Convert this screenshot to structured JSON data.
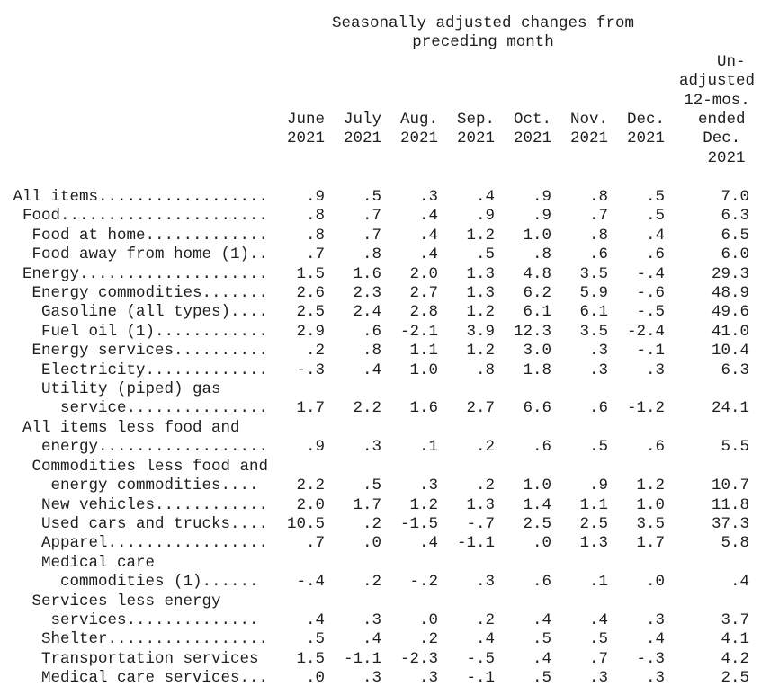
{
  "title": {
    "line1": "Seasonally adjusted changes from",
    "line2": "preceding month"
  },
  "columns": {
    "months": [
      {
        "name": "June",
        "year": "2021"
      },
      {
        "name": "July",
        "year": "2021"
      },
      {
        "name": "Aug.",
        "year": "2021"
      },
      {
        "name": "Sep.",
        "year": "2021"
      },
      {
        "name": "Oct.",
        "year": "2021"
      },
      {
        "name": "Nov.",
        "year": "2021"
      },
      {
        "name": "Dec.",
        "year": "2021"
      }
    ],
    "unadjusted_header": "   Un-\nadjusted\n12-mos.\n ended\n Dec.\n  2021"
  },
  "rows": [
    {
      "label_lines": [
        " All items.................."
      ],
      "values": [
        ".9",
        ".5",
        ".3",
        ".4",
        ".9",
        ".8",
        ".5",
        "7.0"
      ]
    },
    {
      "label_lines": [
        "  Food......................"
      ],
      "values": [
        ".8",
        ".7",
        ".4",
        ".9",
        ".9",
        ".7",
        ".5",
        "6.3"
      ]
    },
    {
      "label_lines": [
        "   Food at home............."
      ],
      "values": [
        ".8",
        ".7",
        ".4",
        "1.2",
        "1.0",
        ".8",
        ".4",
        "6.5"
      ]
    },
    {
      "label_lines": [
        "   Food away from home (1).."
      ],
      "values": [
        ".7",
        ".8",
        ".4",
        ".5",
        ".8",
        ".6",
        ".6",
        "6.0"
      ]
    },
    {
      "label_lines": [
        "  Energy...................."
      ],
      "values": [
        "1.5",
        "1.6",
        "2.0",
        "1.3",
        "4.8",
        "3.5",
        "-.4",
        "29.3"
      ]
    },
    {
      "label_lines": [
        "   Energy commodities......."
      ],
      "values": [
        "2.6",
        "2.3",
        "2.7",
        "1.3",
        "6.2",
        "5.9",
        "-.6",
        "48.9"
      ]
    },
    {
      "label_lines": [
        "    Gasoline (all types)...."
      ],
      "values": [
        "2.5",
        "2.4",
        "2.8",
        "1.2",
        "6.1",
        "6.1",
        "-.5",
        "49.6"
      ]
    },
    {
      "label_lines": [
        "    Fuel oil (1)............"
      ],
      "values": [
        "2.9",
        ".6",
        "-2.1",
        "3.9",
        "12.3",
        "3.5",
        "-2.4",
        "41.0"
      ]
    },
    {
      "label_lines": [
        "   Energy services.........."
      ],
      "values": [
        ".2",
        ".8",
        "1.1",
        "1.2",
        "3.0",
        ".3",
        "-.1",
        "10.4"
      ]
    },
    {
      "label_lines": [
        "    Electricity............."
      ],
      "values": [
        "-.3",
        ".4",
        "1.0",
        ".8",
        "1.8",
        ".3",
        ".3",
        "6.3"
      ]
    },
    {
      "label_lines": [
        "    Utility (piped) gas",
        "      service..............."
      ],
      "values": [
        "1.7",
        "2.2",
        "1.6",
        "2.7",
        "6.6",
        ".6",
        "-1.2",
        "24.1"
      ]
    },
    {
      "label_lines": [
        "  All items less food and",
        "    energy.................."
      ],
      "values": [
        ".9",
        ".3",
        ".1",
        ".2",
        ".6",
        ".5",
        ".6",
        "5.5"
      ]
    },
    {
      "label_lines": [
        "   Commodities less food and",
        "     energy commodities...."
      ],
      "values": [
        "2.2",
        ".5",
        ".3",
        ".2",
        "1.0",
        ".9",
        "1.2",
        "10.7"
      ]
    },
    {
      "label_lines": [
        "    New vehicles............"
      ],
      "values": [
        "2.0",
        "1.7",
        "1.2",
        "1.3",
        "1.4",
        "1.1",
        "1.0",
        "11.8"
      ]
    },
    {
      "label_lines": [
        "    Used cars and trucks...."
      ],
      "values": [
        "10.5",
        ".2",
        "-1.5",
        "-.7",
        "2.5",
        "2.5",
        "3.5",
        "37.3"
      ]
    },
    {
      "label_lines": [
        "    Apparel................."
      ],
      "values": [
        ".7",
        ".0",
        ".4",
        "-1.1",
        ".0",
        "1.3",
        "1.7",
        "5.8"
      ]
    },
    {
      "label_lines": [
        "    Medical care",
        "      commodities (1)......"
      ],
      "values": [
        "-.4",
        ".2",
        "-.2",
        ".3",
        ".6",
        ".1",
        ".0",
        ".4"
      ]
    },
    {
      "label_lines": [
        "   Services less energy",
        "     services.............."
      ],
      "values": [
        ".4",
        ".3",
        ".0",
        ".2",
        ".4",
        ".4",
        ".3",
        "3.7"
      ]
    },
    {
      "label_lines": [
        "    Shelter................."
      ],
      "values": [
        ".5",
        ".4",
        ".2",
        ".4",
        ".5",
        ".5",
        ".4",
        "4.1"
      ]
    },
    {
      "label_lines": [
        "    Transportation services"
      ],
      "values": [
        "1.5",
        "-1.1",
        "-2.3",
        "-.5",
        ".4",
        ".7",
        "-.3",
        "4.2"
      ]
    },
    {
      "label_lines": [
        "    Medical care services..."
      ],
      "values": [
        ".0",
        ".3",
        ".3",
        "-.1",
        ".5",
        ".3",
        ".3",
        "2.5"
      ]
    }
  ]
}
